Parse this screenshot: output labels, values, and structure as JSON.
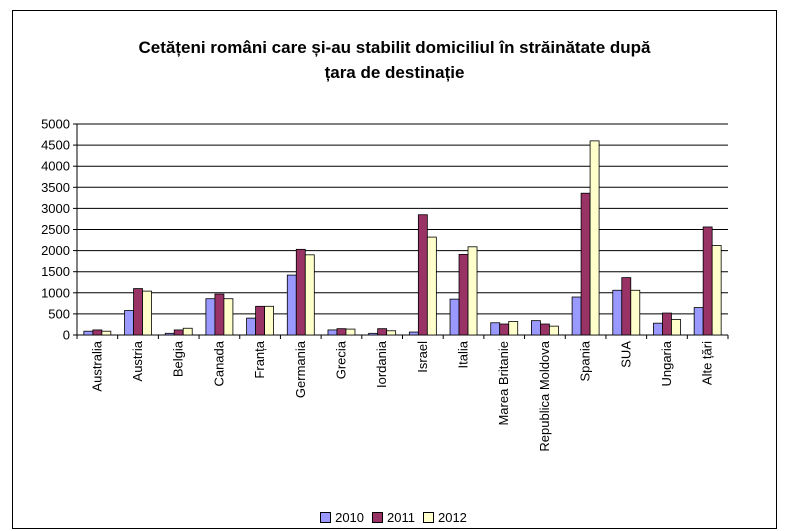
{
  "chart_data": {
    "type": "bar",
    "title_lines": [
      "Cetățeni români care și-au stabilit domiciliul în străinătate după",
      "țara de destinație"
    ],
    "xlabel": "",
    "ylabel": "",
    "ylim": [
      0,
      5000
    ],
    "yticks": [
      "0",
      "500",
      "1000",
      "1500",
      "2000",
      "2500",
      "3000",
      "3500",
      "4000",
      "4500",
      "5000"
    ],
    "grid": true,
    "legend": "bottom",
    "categories": [
      "Australia",
      "Austria",
      "Belgia",
      "Canada",
      "Franța",
      "Germania",
      "Grecia",
      "Iordania",
      "Israel",
      "Italia",
      "Marea Britanie",
      "Republica Moldova",
      "Spania",
      "SUA",
      "Ungaria",
      "Alte țări"
    ],
    "series": [
      {
        "name": "2010",
        "color": "#9999ff",
        "values": [
          90,
          580,
          40,
          860,
          400,
          1420,
          120,
          40,
          70,
          850,
          290,
          340,
          900,
          1060,
          280,
          650
        ]
      },
      {
        "name": "2011",
        "color": "#993366",
        "values": [
          120,
          1100,
          120,
          970,
          680,
          2030,
          150,
          150,
          2850,
          1910,
          260,
          260,
          3360,
          1360,
          520,
          2560
        ]
      },
      {
        "name": "2012",
        "color": "#ffffcc",
        "values": [
          90,
          1040,
          160,
          860,
          680,
          1900,
          140,
          100,
          2320,
          2090,
          320,
          210,
          4600,
          1060,
          370,
          2120
        ]
      }
    ]
  }
}
